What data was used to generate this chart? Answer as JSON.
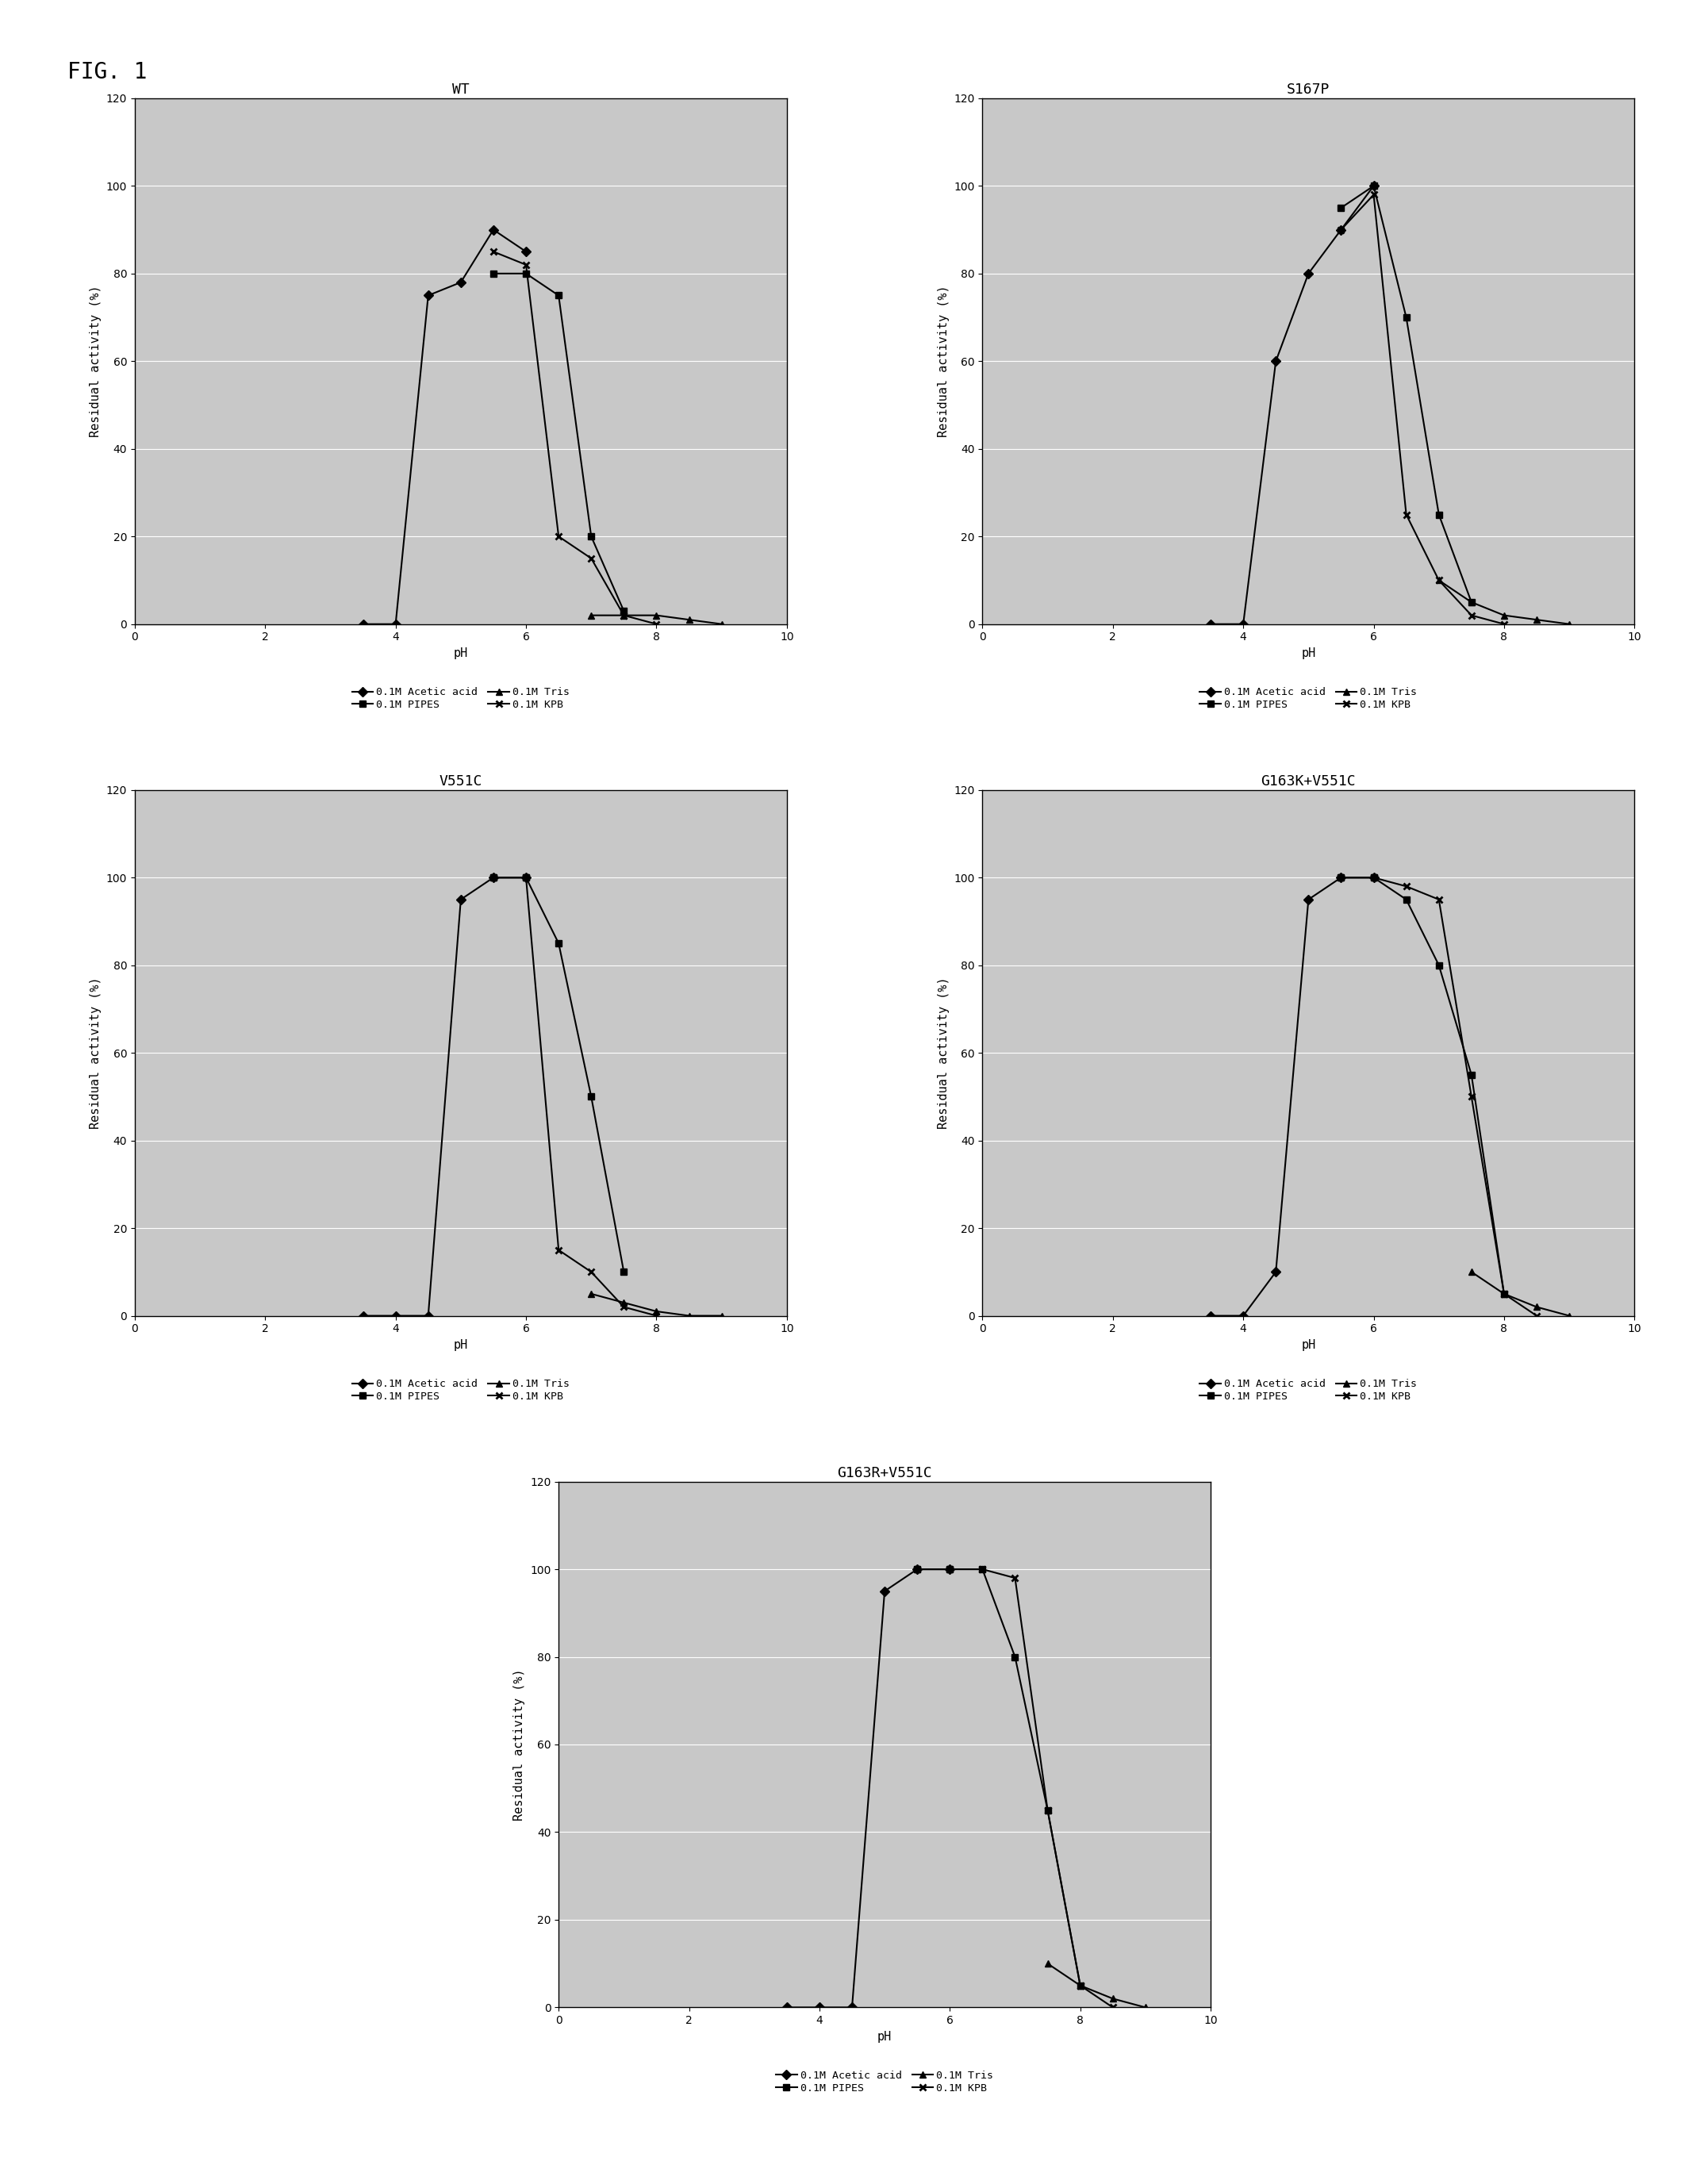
{
  "fig_label": "FIG. 1",
  "panels": [
    {
      "title": "WT",
      "acetic_acid": {
        "x": [
          3.5,
          4.0,
          4.5,
          5.0,
          5.5,
          6.0
        ],
        "y": [
          0,
          0,
          75,
          78,
          90,
          85
        ]
      },
      "pipes": {
        "x": [
          5.5,
          6.0,
          6.5,
          7.0,
          7.5
        ],
        "y": [
          80,
          80,
          75,
          20,
          3
        ]
      },
      "tris": {
        "x": [
          7.0,
          7.5,
          8.0,
          8.5,
          9.0
        ],
        "y": [
          2,
          2,
          2,
          1,
          0
        ]
      },
      "kpb": {
        "x": [
          5.5,
          6.0,
          6.5,
          7.0,
          7.5,
          8.0
        ],
        "y": [
          85,
          82,
          20,
          15,
          2,
          0
        ]
      }
    },
    {
      "title": "S167P",
      "acetic_acid": {
        "x": [
          3.5,
          4.0,
          4.5,
          5.0,
          5.5,
          6.0
        ],
        "y": [
          0,
          0,
          60,
          80,
          90,
          100
        ]
      },
      "pipes": {
        "x": [
          5.5,
          6.0,
          6.5,
          7.0,
          7.5
        ],
        "y": [
          95,
          100,
          70,
          25,
          5
        ]
      },
      "tris": {
        "x": [
          7.0,
          7.5,
          8.0,
          8.5,
          9.0
        ],
        "y": [
          10,
          5,
          2,
          1,
          0
        ]
      },
      "kpb": {
        "x": [
          5.5,
          6.0,
          6.5,
          7.0,
          7.5,
          8.0
        ],
        "y": [
          90,
          98,
          25,
          10,
          2,
          0
        ]
      }
    },
    {
      "title": "V551C",
      "acetic_acid": {
        "x": [
          3.5,
          4.0,
          4.5,
          5.0,
          5.5,
          6.0
        ],
        "y": [
          0,
          0,
          0,
          95,
          100,
          100
        ]
      },
      "pipes": {
        "x": [
          5.5,
          6.0,
          6.5,
          7.0,
          7.5
        ],
        "y": [
          100,
          100,
          85,
          50,
          10
        ]
      },
      "tris": {
        "x": [
          7.0,
          7.5,
          8.0,
          8.5,
          9.0
        ],
        "y": [
          5,
          3,
          1,
          0,
          0
        ]
      },
      "kpb": {
        "x": [
          5.5,
          6.0,
          6.5,
          7.0,
          7.5,
          8.0
        ],
        "y": [
          100,
          100,
          15,
          10,
          2,
          0
        ]
      }
    },
    {
      "title": "G163K+V551C",
      "acetic_acid": {
        "x": [
          3.5,
          4.0,
          4.5,
          5.0,
          5.5,
          6.0
        ],
        "y": [
          0,
          0,
          10,
          95,
          100,
          100
        ]
      },
      "pipes": {
        "x": [
          5.5,
          6.0,
          6.5,
          7.0,
          7.5,
          8.0
        ],
        "y": [
          100,
          100,
          95,
          80,
          55,
          5
        ]
      },
      "tris": {
        "x": [
          7.5,
          8.0,
          8.5,
          9.0
        ],
        "y": [
          10,
          5,
          2,
          0
        ]
      },
      "kpb": {
        "x": [
          5.5,
          6.0,
          6.5,
          7.0,
          7.5,
          8.0,
          8.5
        ],
        "y": [
          100,
          100,
          98,
          95,
          50,
          5,
          0
        ]
      }
    },
    {
      "title": "G163R+V551C",
      "acetic_acid": {
        "x": [
          3.5,
          4.0,
          4.5,
          5.0,
          5.5,
          6.0
        ],
        "y": [
          0,
          0,
          0,
          95,
          100,
          100
        ]
      },
      "pipes": {
        "x": [
          5.5,
          6.0,
          6.5,
          7.0,
          7.5,
          8.0
        ],
        "y": [
          100,
          100,
          100,
          80,
          45,
          5
        ]
      },
      "tris": {
        "x": [
          7.5,
          8.0,
          8.5,
          9.0
        ],
        "y": [
          10,
          5,
          2,
          0
        ]
      },
      "kpb": {
        "x": [
          5.5,
          6.0,
          6.5,
          7.0,
          7.5,
          8.0,
          8.5
        ],
        "y": [
          100,
          100,
          100,
          98,
          45,
          5,
          0
        ]
      }
    }
  ],
  "xlim": [
    0,
    10
  ],
  "ylim": [
    0,
    120
  ],
  "xticks": [
    0,
    2,
    4,
    6,
    8,
    10
  ],
  "yticks": [
    0,
    20,
    40,
    60,
    80,
    100,
    120
  ],
  "xlabel": "pH",
  "ylabel": "Residual activity (%)",
  "plot_bg_color": "#c8c8c8",
  "outer_bg_color": "#ffffff",
  "legend_labels": [
    "0.1M Acetic acid",
    "0.1M PIPES",
    "0.1M Tris",
    "0.1M KPB"
  ],
  "legend_markers": [
    "D",
    "s",
    "^",
    "x"
  ],
  "title_fontsize": 13,
  "axis_label_fontsize": 11,
  "tick_fontsize": 10,
  "legend_fontsize": 9.5,
  "line_width": 1.5,
  "marker_size": 6
}
